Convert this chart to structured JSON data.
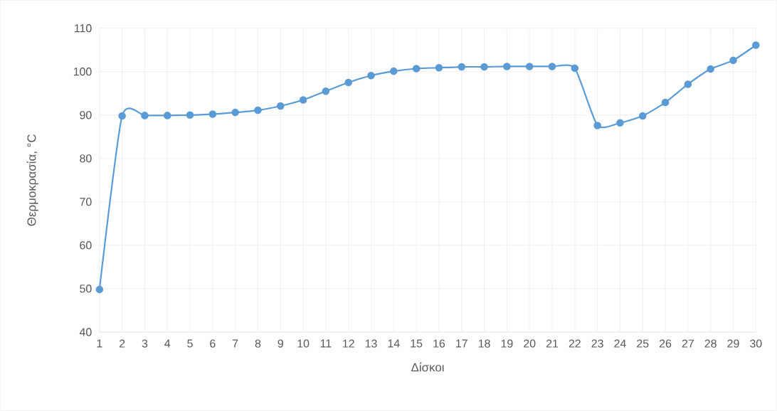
{
  "chart_data": {
    "type": "line",
    "xlabel": "Δίσκοι",
    "ylabel": "Θερμοκρασία, °C",
    "x": [
      1,
      2,
      3,
      4,
      5,
      6,
      7,
      8,
      9,
      10,
      11,
      12,
      13,
      14,
      15,
      16,
      17,
      18,
      19,
      20,
      21,
      22,
      23,
      24,
      25,
      26,
      27,
      28,
      29,
      30
    ],
    "series": [
      {
        "color": "#5b9bd5",
        "values": [
          49.8,
          89.8,
          89.9,
          89.9,
          90.0,
          90.2,
          90.6,
          91.1,
          92.1,
          93.5,
          95.5,
          97.5,
          99.1,
          100.1,
          100.7,
          100.9,
          101.1,
          101.1,
          101.2,
          101.2,
          101.2,
          100.8,
          87.6,
          88.2,
          89.8,
          92.9,
          97.1,
          100.6,
          102.6,
          106.1
        ]
      }
    ],
    "xlim": [
      1,
      30
    ],
    "xticks": [
      1,
      2,
      3,
      4,
      5,
      6,
      7,
      8,
      9,
      10,
      11,
      12,
      13,
      14,
      15,
      16,
      17,
      18,
      19,
      20,
      21,
      22,
      23,
      24,
      25,
      26,
      27,
      28,
      29,
      30
    ],
    "ylim": [
      40,
      110
    ],
    "yticks": [
      40,
      50,
      60,
      70,
      80,
      90,
      100,
      110
    ],
    "grid": true,
    "marker": "circle",
    "line_style": "solid"
  }
}
